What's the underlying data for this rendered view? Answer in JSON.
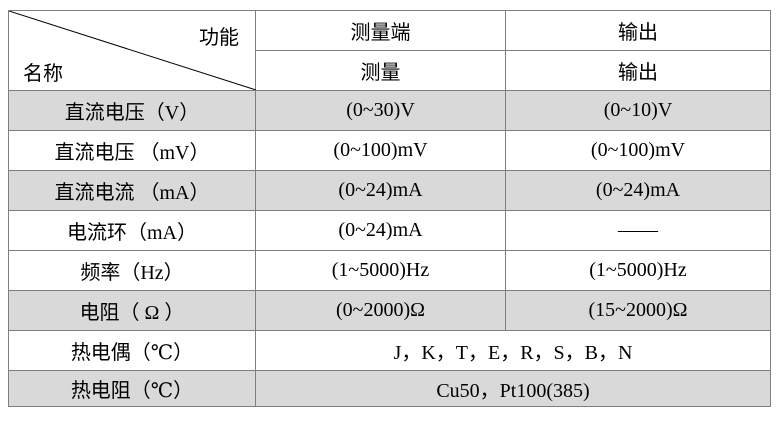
{
  "header": {
    "function_label": "功能",
    "name_label": "名称",
    "columns": [
      {
        "top": "测量端",
        "bottom": "测量"
      },
      {
        "top": "输出",
        "bottom": "输出"
      }
    ]
  },
  "rows": [
    [
      "直流电压（V）",
      "(0~30)V",
      "(0~10)V"
    ],
    [
      "直流电压 （mV）",
      "(0~100)mV",
      "(0~100)mV"
    ],
    [
      "直流电流 （mA）",
      "(0~24)mA",
      "(0~24)mA"
    ],
    [
      "电流环（mA）",
      "(0~24)mA",
      "——"
    ],
    [
      "频率（Hz）",
      "(1~5000)Hz",
      "(1~5000)Hz"
    ],
    [
      "电阻（ Ω ）",
      "(0~2000)Ω",
      "(15~2000)Ω"
    ],
    [
      "热电偶（℃）",
      "J，K，T，E，R，S，B，N"
    ],
    [
      "热电阻（℃）",
      "Cu50，Pt100(385)"
    ]
  ]
}
